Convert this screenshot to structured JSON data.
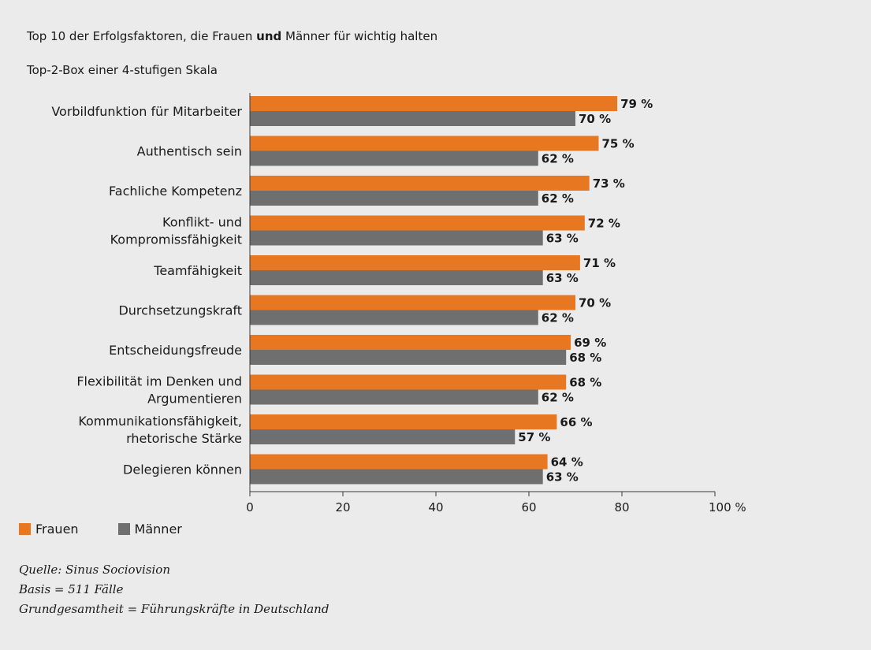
{
  "header": {
    "title_part1": "Top 10 der Erfolgsfaktoren, die Frauen ",
    "title_bold": "und",
    "title_part2": " Männer für wichtig halten",
    "subtitle": "Top-2-Box einer 4-stufigen Skala"
  },
  "colors": {
    "frauen": "#e87722",
    "maenner": "#6f6f6f",
    "background": "#ebebeb"
  },
  "chart_data": {
    "type": "bar",
    "orientation": "horizontal",
    "categories": [
      [
        "Vorbildfunktion für Mitarbeiter"
      ],
      [
        "Authentisch sein"
      ],
      [
        "Fachliche Kompetenz"
      ],
      [
        "Konflikt- und",
        "Kompromissfähigkeit"
      ],
      [
        "Teamfähigkeit"
      ],
      [
        "Durchsetzungskraft"
      ],
      [
        "Entscheidungsfreude"
      ],
      [
        "Flexibilität im Denken und",
        "Argumentieren"
      ],
      [
        "Kommunikationsfähigkeit,",
        "rhetorische Stärke"
      ],
      [
        "Delegieren können"
      ]
    ],
    "series": [
      {
        "name": "Frauen",
        "values": [
          79,
          75,
          73,
          72,
          71,
          70,
          69,
          68,
          66,
          64
        ],
        "labels": [
          "79 %",
          "75 %",
          "73 %",
          "72 %",
          "71 %",
          "70 %",
          "69 %",
          "68 %",
          "66 %",
          "64 %"
        ]
      },
      {
        "name": "Männer",
        "values": [
          70,
          62,
          62,
          63,
          63,
          62,
          68,
          62,
          57,
          63
        ],
        "labels": [
          "70 %",
          "62 %",
          "62 %",
          "63 %",
          "63 %",
          "62 %",
          "68 %",
          "62 %",
          "57 %",
          "63 %"
        ]
      }
    ],
    "xlim": [
      0,
      100
    ],
    "xticks": [
      0,
      20,
      40,
      60,
      80,
      100
    ],
    "xtick_labels": [
      "0",
      "20",
      "40",
      "60",
      "80",
      "100 %"
    ],
    "grid": false,
    "legend_position": "bottom-left"
  },
  "legend": {
    "items": [
      "Frauen",
      "Männer"
    ]
  },
  "footnotes": {
    "source": "Quelle: Sinus Sociovision",
    "basis": "Basis = 511 Fälle",
    "population": "Grundgesamtheit = Führungskräfte in Deutschland"
  }
}
